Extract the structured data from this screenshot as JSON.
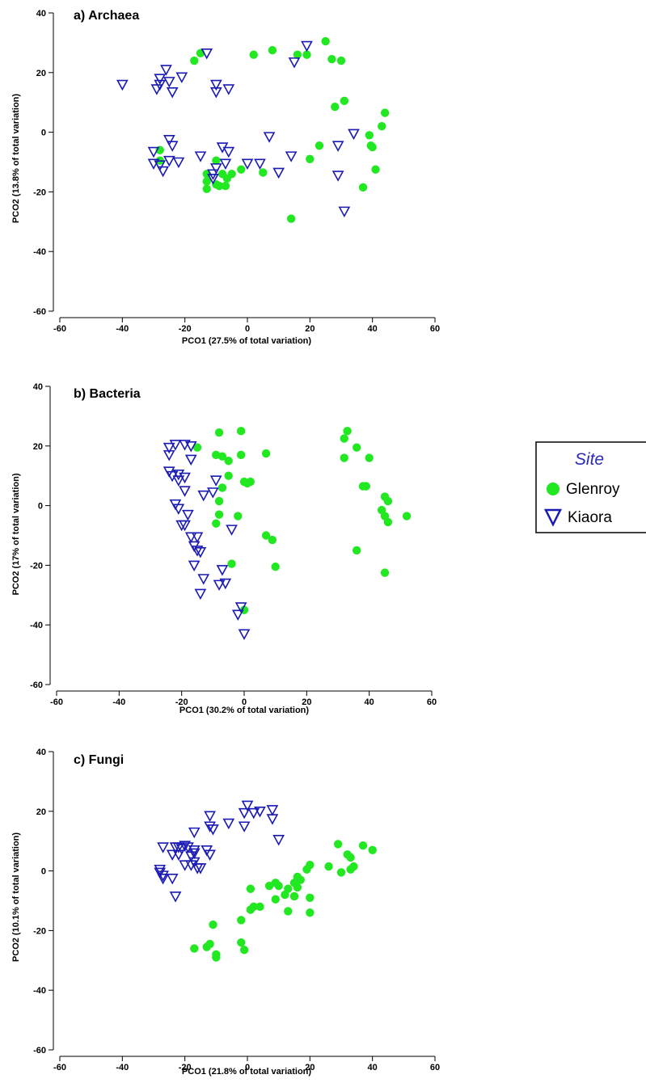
{
  "legend": {
    "title": "Site",
    "entries": [
      {
        "label": "Glenroy",
        "marker": "filled-circle",
        "color": "#22e822"
      },
      {
        "label": "Kiaora",
        "marker": "open-down-triangle",
        "color": "#1a1ab4"
      }
    ]
  },
  "chart_data": [
    {
      "type": "scatter",
      "title": "a) Archaea",
      "xlabel": "PCO1 (27.5% of total variation)",
      "ylabel": "PCO2 (13.8% of total variation)",
      "xlim": [
        -60,
        60
      ],
      "ylim": [
        -60,
        40
      ],
      "xticks": [
        "-60",
        "-40",
        "-20",
        "0",
        "20",
        "40",
        "60"
      ],
      "yticks": [
        "-60",
        "-40",
        "-20",
        "0",
        "20",
        "40"
      ],
      "grid": false,
      "series": [
        {
          "name": "Glenroy",
          "points": [
            [
              -15,
              26.5
            ],
            [
              -17,
              24
            ],
            [
              2,
              26
            ],
            [
              8,
              27.5
            ],
            [
              16,
              26
            ],
            [
              19,
              26
            ],
            [
              25,
              30.5
            ],
            [
              27,
              24.5
            ],
            [
              30,
              24
            ],
            [
              28,
              8.5
            ],
            [
              31,
              10.5
            ],
            [
              44,
              6.5
            ],
            [
              43,
              2
            ],
            [
              39,
              -1
            ],
            [
              39.5,
              -4.5
            ],
            [
              40,
              -5
            ],
            [
              41,
              -12.5
            ],
            [
              37,
              -18.5
            ],
            [
              23,
              -4.5
            ],
            [
              20,
              -9
            ],
            [
              14,
              -29
            ],
            [
              5,
              -13.5
            ],
            [
              -2,
              -12.5
            ],
            [
              -5,
              -14
            ],
            [
              -6.5,
              -15.5
            ],
            [
              -8,
              -14
            ],
            [
              -10,
              -9.5
            ],
            [
              -13,
              -14
            ],
            [
              -13,
              -16.5
            ],
            [
              -13,
              -19
            ],
            [
              -9,
              -18
            ],
            [
              -7,
              -18
            ],
            [
              -10,
              -17.5
            ],
            [
              -28,
              -6
            ],
            [
              -28,
              -9.5
            ]
          ]
        },
        {
          "name": "Kiaora",
          "points": [
            [
              -40,
              16
            ],
            [
              -28,
              18
            ],
            [
              -28,
              16
            ],
            [
              -29,
              14.5
            ],
            [
              -26,
              21
            ],
            [
              -25,
              17
            ],
            [
              -24,
              13.5
            ],
            [
              -21,
              18.5
            ],
            [
              -13,
              26.5
            ],
            [
              -10,
              16
            ],
            [
              -10,
              13.5
            ],
            [
              -6,
              14.5
            ],
            [
              15,
              23.5
            ],
            [
              19,
              29
            ],
            [
              -25,
              -2.5
            ],
            [
              -24,
              -4.5
            ],
            [
              -30,
              -6.5
            ],
            [
              -30,
              -10.5
            ],
            [
              -28,
              -11
            ],
            [
              -27,
              -13
            ],
            [
              -25,
              -9.5
            ],
            [
              -22,
              -10
            ],
            [
              -15,
              -8
            ],
            [
              -10,
              -12
            ],
            [
              -11,
              -14
            ],
            [
              -11,
              -15.5
            ],
            [
              -8,
              -5
            ],
            [
              -6,
              -6.5
            ],
            [
              -7,
              -10.5
            ],
            [
              0,
              -10.5
            ],
            [
              4,
              -10.5
            ],
            [
              7,
              -1.5
            ],
            [
              10,
              -13.5
            ],
            [
              14,
              -8
            ],
            [
              29,
              -4.5
            ],
            [
              29,
              -14.5
            ],
            [
              31,
              -26.5
            ],
            [
              34,
              -0.5
            ]
          ]
        }
      ]
    },
    {
      "type": "scatter",
      "title": "b) Bacteria",
      "xlabel": "PCO1 (30.2% of total variation)",
      "ylabel": "PCO2 (17% of total variation)",
      "xlim": [
        -60,
        60
      ],
      "ylim": [
        -60,
        40
      ],
      "xticks": [
        "-60",
        "-40",
        "-20",
        "0",
        "20",
        "40",
        "60"
      ],
      "yticks": [
        "-60",
        "-40",
        "-20",
        "0",
        "20",
        "40"
      ],
      "grid": false,
      "series": [
        {
          "name": "Glenroy",
          "points": [
            [
              -15,
              19.5
            ],
            [
              -8,
              24.5
            ],
            [
              -1,
              25
            ],
            [
              -9,
              17
            ],
            [
              -7,
              16.5
            ],
            [
              -5,
              15
            ],
            [
              -1,
              17
            ],
            [
              7,
              17.5
            ],
            [
              -5,
              10
            ],
            [
              -7,
              6
            ],
            [
              0,
              8
            ],
            [
              1,
              7.5
            ],
            [
              2,
              8
            ],
            [
              -8,
              1.5
            ],
            [
              -8,
              -3
            ],
            [
              -9,
              -6
            ],
            [
              -2,
              -3.5
            ],
            [
              -4,
              -19.5
            ],
            [
              7,
              -10
            ],
            [
              9,
              -11.5
            ],
            [
              10,
              -20.5
            ],
            [
              0,
              -35
            ],
            [
              32,
              22.5
            ],
            [
              33,
              25
            ],
            [
              36,
              19.5
            ],
            [
              40,
              16
            ],
            [
              32,
              16
            ],
            [
              38,
              6.5
            ],
            [
              39,
              6.5
            ],
            [
              44,
              -1.5
            ],
            [
              45,
              -3.5
            ],
            [
              45,
              3
            ],
            [
              46,
              1.5
            ],
            [
              46,
              -5.5
            ],
            [
              52,
              -3.5
            ],
            [
              36,
              -15
            ],
            [
              45,
              -22.5
            ]
          ]
        },
        {
          "name": "Kiaora",
          "points": [
            [
              -24,
              19.5
            ],
            [
              -22,
              20.5
            ],
            [
              -19,
              20.5
            ],
            [
              -17,
              20
            ],
            [
              -24,
              17
            ],
            [
              -17,
              15.5
            ],
            [
              -24,
              11.5
            ],
            [
              -23,
              10
            ],
            [
              -21,
              10.5
            ],
            [
              -19,
              9.5
            ],
            [
              -21,
              8.5
            ],
            [
              -9,
              8.5
            ],
            [
              -19,
              5
            ],
            [
              -13,
              3.5
            ],
            [
              -10,
              4.5
            ],
            [
              -22,
              0.5
            ],
            [
              -21,
              -1
            ],
            [
              -18,
              -3
            ],
            [
              -20,
              -6.5
            ],
            [
              -19,
              -6.5
            ],
            [
              -4,
              -8
            ],
            [
              -17,
              -10.5
            ],
            [
              -15,
              -10.5
            ],
            [
              -16,
              -13.5
            ],
            [
              -15,
              -15
            ],
            [
              -14,
              -15.5
            ],
            [
              -16,
              -20
            ],
            [
              -7,
              -21.5
            ],
            [
              -13,
              -24.5
            ],
            [
              -8,
              -26.5
            ],
            [
              -6,
              -26
            ],
            [
              -14,
              -29.5
            ],
            [
              -1,
              -34
            ],
            [
              -2,
              -36.5
            ],
            [
              0,
              -43
            ]
          ]
        }
      ]
    },
    {
      "type": "scatter",
      "title": "c) Fungi",
      "xlabel": "PCO1 (21.8% of total variation)",
      "ylabel": "PCO2 (10.1% of total variation)",
      "xlim": [
        -60,
        60
      ],
      "ylim": [
        -60,
        40
      ],
      "xticks": [
        "-60",
        "-40",
        "-20",
        "0",
        "20",
        "40",
        "60"
      ],
      "yticks": [
        "-60",
        "-40",
        "-20",
        "0",
        "20",
        "40"
      ],
      "grid": false,
      "series": [
        {
          "name": "Glenroy",
          "points": [
            [
              29,
              9
            ],
            [
              37,
              8.5
            ],
            [
              40,
              7
            ],
            [
              32,
              5.5
            ],
            [
              33,
              4.5
            ],
            [
              26,
              1.5
            ],
            [
              34,
              1.5
            ],
            [
              33,
              0.5
            ],
            [
              30,
              -0.5
            ],
            [
              20,
              2
            ],
            [
              19,
              0.5
            ],
            [
              17,
              -3
            ],
            [
              16,
              -2
            ],
            [
              15,
              -4
            ],
            [
              16,
              -5.5
            ],
            [
              13,
              -6
            ],
            [
              15,
              -8.5
            ],
            [
              12,
              -8
            ],
            [
              9,
              -4
            ],
            [
              9,
              -9.5
            ],
            [
              7,
              -5
            ],
            [
              10,
              -5
            ],
            [
              1,
              -6
            ],
            [
              20,
              -9
            ],
            [
              20,
              -14
            ],
            [
              13,
              -13.5
            ],
            [
              4,
              -12
            ],
            [
              2,
              -12
            ],
            [
              1,
              -13
            ],
            [
              -2,
              -16.5
            ],
            [
              -11,
              -18
            ],
            [
              -17,
              -26
            ],
            [
              -13,
              -25.5
            ],
            [
              -12,
              -24.5
            ],
            [
              -2,
              -24
            ],
            [
              -10,
              -28
            ],
            [
              -10,
              -29
            ],
            [
              -1,
              -26.5
            ]
          ]
        },
        {
          "name": "Kiaora",
          "points": [
            [
              0,
              22
            ],
            [
              -1,
              19.5
            ],
            [
              2,
              19.5
            ],
            [
              8,
              20.5
            ],
            [
              8,
              17.5
            ],
            [
              -1,
              15
            ],
            [
              4,
              20
            ],
            [
              -6,
              16
            ],
            [
              -12,
              18.5
            ],
            [
              -12,
              15
            ],
            [
              -11,
              14
            ],
            [
              -17,
              13
            ],
            [
              -20,
              8.5
            ],
            [
              -22,
              8
            ],
            [
              -19,
              8
            ],
            [
              -21,
              7.5
            ],
            [
              -17,
              7
            ],
            [
              -27,
              8
            ],
            [
              -23,
              8
            ],
            [
              -22,
              5.5
            ],
            [
              -18,
              5
            ],
            [
              -17,
              6
            ],
            [
              -13,
              7
            ],
            [
              -12,
              5.5
            ],
            [
              -24,
              5.5
            ],
            [
              -20,
              2
            ],
            [
              -18,
              2
            ],
            [
              -16,
              1
            ],
            [
              -17,
              3
            ],
            [
              -28,
              0.5
            ],
            [
              -28,
              -0.5
            ],
            [
              -27,
              -1.5
            ],
            [
              -27,
              -2.5
            ],
            [
              -24,
              -2.5
            ],
            [
              -23,
              -8.5
            ],
            [
              -15,
              1
            ],
            [
              10,
              10.5
            ]
          ]
        }
      ]
    }
  ]
}
